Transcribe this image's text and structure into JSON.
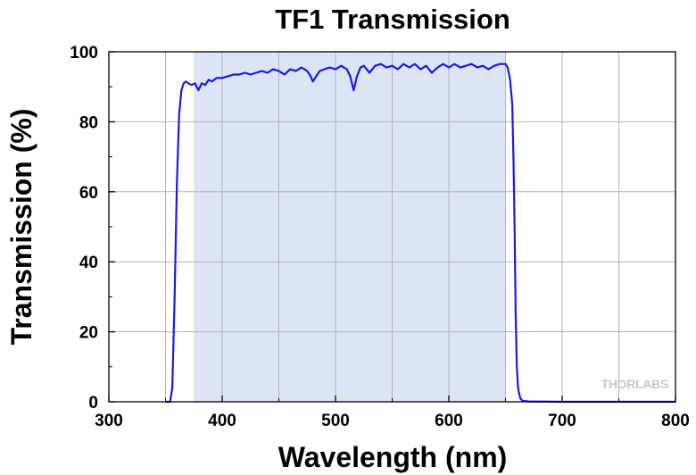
{
  "chart_data": {
    "type": "line",
    "title": "TF1 Transmission",
    "xlabel": "Wavelength (nm)",
    "ylabel": "Transmission (%)",
    "xlim": [
      300,
      800
    ],
    "ylim": [
      0,
      100
    ],
    "x_ticks": [
      300,
      400,
      500,
      600,
      700,
      800
    ],
    "y_ticks": [
      0,
      20,
      40,
      60,
      80,
      100
    ],
    "grid": true,
    "shaded_band": {
      "x_start": 375,
      "x_end": 650,
      "color": "#dbe5f6"
    },
    "watermark": "THORLABS",
    "series": [
      {
        "color": "#1a1ae6",
        "x": [
          350,
          354,
          356,
          358,
          360,
          362,
          364,
          366,
          368,
          370,
          373,
          376,
          379,
          382,
          385,
          388,
          391,
          395,
          400,
          405,
          410,
          415,
          420,
          425,
          430,
          435,
          440,
          445,
          450,
          455,
          460,
          465,
          470,
          475,
          478,
          480,
          483,
          486,
          490,
          495,
          500,
          505,
          510,
          513,
          516,
          519,
          522,
          525,
          530,
          535,
          540,
          545,
          550,
          555,
          560,
          565,
          570,
          575,
          580,
          585,
          590,
          595,
          600,
          605,
          610,
          615,
          620,
          625,
          630,
          635,
          640,
          645,
          650,
          652,
          654,
          656,
          657,
          658,
          659,
          660,
          661,
          663,
          665,
          670,
          700,
          750,
          800
        ],
        "y": [
          0,
          0,
          4,
          30,
          62,
          82,
          89,
          91,
          91.5,
          91,
          90.5,
          91,
          89,
          91,
          90.5,
          92,
          91.5,
          92.5,
          92.5,
          93,
          93.5,
          93.5,
          94,
          93.5,
          94,
          94.5,
          94,
          95,
          94.5,
          93.5,
          95,
          94.5,
          95.5,
          94.5,
          93,
          91.5,
          93,
          94.5,
          95,
          95.5,
          95,
          96,
          95,
          93,
          89,
          93,
          95.5,
          96,
          94,
          96,
          96.5,
          95.5,
          96,
          95,
          96.5,
          95.5,
          96.5,
          95,
          96,
          94,
          95.5,
          96.5,
          95.5,
          96.5,
          95.5,
          96,
          96.5,
          95.5,
          96,
          95,
          96,
          96.5,
          96.5,
          95.5,
          92,
          85,
          70,
          50,
          25,
          10,
          4,
          1,
          0.3,
          0.1,
          0,
          0,
          0
        ]
      }
    ]
  }
}
